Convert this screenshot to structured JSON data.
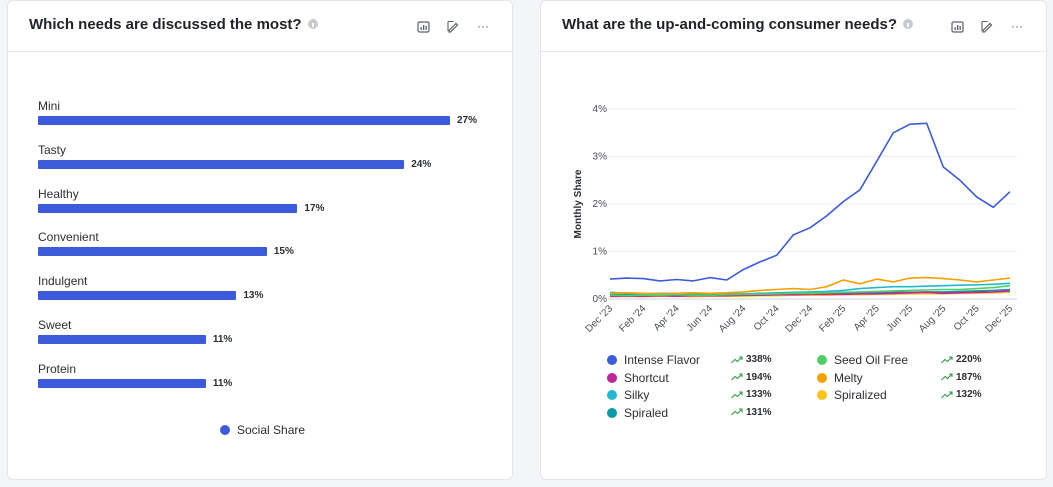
{
  "left_card": {
    "title": "Which needs are discussed the most?",
    "icons": [
      "chart-type-icon",
      "edit-icon",
      "more-icon"
    ],
    "more_label": "···"
  },
  "right_card": {
    "title": "What are the up-and-coming consumer needs?",
    "icons": [
      "chart-type-icon",
      "edit-icon",
      "more-icon"
    ],
    "more_label": "···"
  },
  "chart_data": [
    {
      "type": "bar",
      "orientation": "horizontal",
      "categories": [
        "Mini",
        "Tasty",
        "Healthy",
        "Convenient",
        "Indulgent",
        "Sweet",
        "Protein"
      ],
      "values": [
        27,
        24,
        17,
        15,
        13,
        11,
        11
      ],
      "value_labels": [
        "27%",
        "24%",
        "17%",
        "15%",
        "13%",
        "11%",
        "11%"
      ],
      "series": [
        {
          "name": "Social Share",
          "color": "#3b5bdb"
        }
      ],
      "legend": "bottom",
      "grid": false
    },
    {
      "type": "line",
      "ylabel": "Monthly Share",
      "ylim": [
        0,
        4
      ],
      "yticks": [
        "0%",
        "1%",
        "2%",
        "3%",
        "4%"
      ],
      "x": [
        "Dec '23",
        "Jan '24",
        "Feb '24",
        "Mar '24",
        "Apr '24",
        "May '24",
        "Jun '24",
        "Jul '24",
        "Aug '24",
        "Sep '24",
        "Oct '24",
        "Nov '24",
        "Dec '24",
        "Jan '25",
        "Feb '25",
        "Mar '25",
        "Apr '25",
        "May '25",
        "Jun '25",
        "Jul '25",
        "Aug '25",
        "Sep '25",
        "Oct '25",
        "Nov '25",
        "Dec '25"
      ],
      "xticks": [
        "Dec '23",
        "Feb '24",
        "Apr '24",
        "Jun '24",
        "Aug '24",
        "Oct '24",
        "Dec '24",
        "Feb '25",
        "Apr '25",
        "Jun '25",
        "Aug '25",
        "Oct '25",
        "Dec '25"
      ],
      "grid": true,
      "legend": "bottom",
      "series": [
        {
          "name": "Intense Flavor",
          "color": "#3b5bdb",
          "growth": "338%",
          "values": [
            0.42,
            0.44,
            0.43,
            0.38,
            0.41,
            0.38,
            0.45,
            0.4,
            0.62,
            0.78,
            0.92,
            1.35,
            1.5,
            1.75,
            2.05,
            2.3,
            2.9,
            3.5,
            3.68,
            3.7,
            2.78,
            2.5,
            2.15,
            1.93,
            2.26
          ]
        },
        {
          "name": "Seed Oil Free",
          "color": "#51cf66",
          "growth": "220%",
          "values": [
            0.08,
            0.07,
            0.08,
            0.08,
            0.09,
            0.08,
            0.08,
            0.09,
            0.1,
            0.1,
            0.11,
            0.12,
            0.12,
            0.13,
            0.14,
            0.15,
            0.16,
            0.17,
            0.18,
            0.19,
            0.2,
            0.2,
            0.22,
            0.24,
            0.28
          ]
        },
        {
          "name": "Shortcut",
          "color": "#c2259e",
          "growth": "194%",
          "values": [
            0.06,
            0.06,
            0.06,
            0.07,
            0.06,
            0.07,
            0.07,
            0.07,
            0.08,
            0.08,
            0.09,
            0.09,
            0.1,
            0.1,
            0.1,
            0.11,
            0.11,
            0.12,
            0.13,
            0.14,
            0.12,
            0.13,
            0.14,
            0.15,
            0.17
          ]
        },
        {
          "name": "Melty",
          "color": "#f59f00",
          "growth": "187%",
          "values": [
            0.12,
            0.13,
            0.12,
            0.11,
            0.12,
            0.13,
            0.12,
            0.13,
            0.15,
            0.18,
            0.2,
            0.22,
            0.2,
            0.26,
            0.4,
            0.32,
            0.42,
            0.36,
            0.44,
            0.45,
            0.43,
            0.4,
            0.36,
            0.4,
            0.44
          ]
        },
        {
          "name": "Silky",
          "color": "#22b8cf",
          "growth": "133%",
          "values": [
            0.14,
            0.12,
            0.11,
            0.12,
            0.12,
            0.12,
            0.12,
            0.11,
            0.11,
            0.12,
            0.13,
            0.14,
            0.15,
            0.16,
            0.18,
            0.22,
            0.24,
            0.26,
            0.26,
            0.27,
            0.28,
            0.29,
            0.3,
            0.31,
            0.33
          ]
        },
        {
          "name": "Spiralized",
          "color": "#fcc419",
          "growth": "132%",
          "values": [
            0.05,
            0.05,
            0.05,
            0.06,
            0.06,
            0.05,
            0.06,
            0.06,
            0.06,
            0.07,
            0.07,
            0.08,
            0.08,
            0.08,
            0.09,
            0.09,
            0.1,
            0.1,
            0.11,
            0.11,
            0.11,
            0.12,
            0.12,
            0.13,
            0.14
          ]
        },
        {
          "name": "Spiraled",
          "color": "#0c9aa6",
          "growth": "131%",
          "values": [
            0.1,
            0.09,
            0.09,
            0.09,
            0.09,
            0.09,
            0.1,
            0.09,
            0.09,
            0.1,
            0.1,
            0.1,
            0.11,
            0.11,
            0.12,
            0.12,
            0.13,
            0.14,
            0.14,
            0.15,
            0.15,
            0.16,
            0.17,
            0.18,
            0.2
          ]
        }
      ]
    }
  ]
}
